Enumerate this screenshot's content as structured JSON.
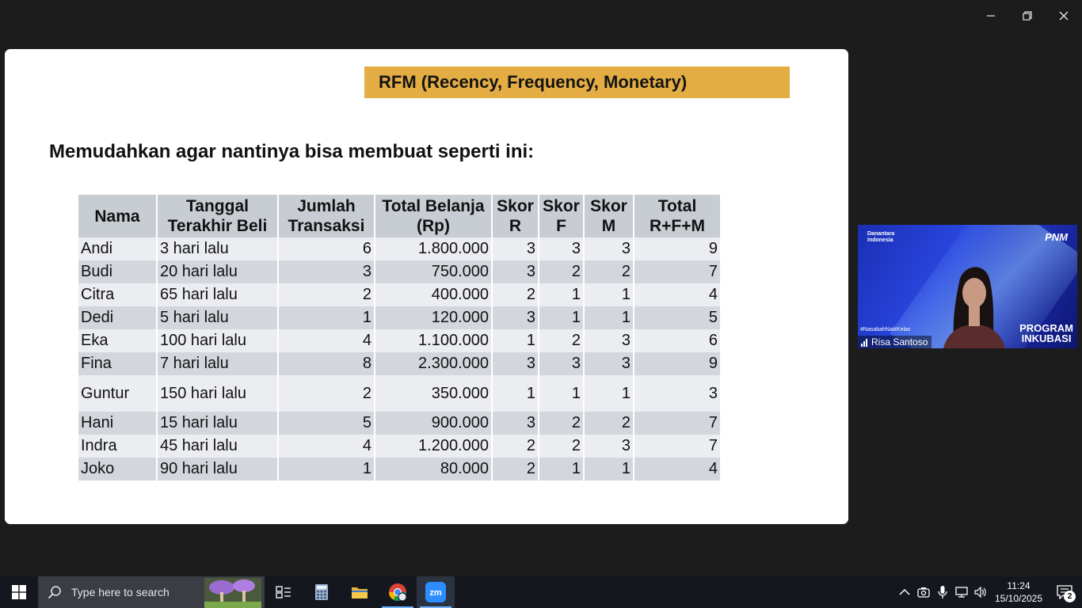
{
  "slide": {
    "title": "RFM (Recency, Frequency, Monetary)",
    "heading": "Memudahkan agar nantinya bisa membuat seperti ini:",
    "table": {
      "headers": [
        [
          "Nama",
          ""
        ],
        [
          "Tanggal",
          "Terakhir Beli"
        ],
        [
          "Jumlah",
          "Transaksi"
        ],
        [
          "Total Belanja",
          "(Rp)"
        ],
        [
          "Skor",
          "R"
        ],
        [
          "Skor",
          "F"
        ],
        [
          "Skor",
          "M"
        ],
        [
          "Total",
          "R+F+M"
        ]
      ],
      "rows": [
        [
          "Andi",
          "3 hari lalu",
          "6",
          "1.800.000",
          "3",
          "3",
          "3",
          "9"
        ],
        [
          "Budi",
          "20 hari lalu",
          "3",
          "750.000",
          "3",
          "2",
          "2",
          "7"
        ],
        [
          "Citra",
          "65 hari lalu",
          "2",
          "400.000",
          "2",
          "1",
          "1",
          "4"
        ],
        [
          "Dedi",
          "5 hari lalu",
          "1",
          "120.000",
          "3",
          "1",
          "1",
          "5"
        ],
        [
          "Eka",
          "100 hari lalu",
          "4",
          "1.100.000",
          "1",
          "2",
          "3",
          "6"
        ],
        [
          "Fina",
          "7 hari lalu",
          "8",
          "2.300.000",
          "3",
          "3",
          "3",
          "9"
        ],
        [
          "Guntur",
          "150 hari lalu",
          "2",
          "350.000",
          "1",
          "1",
          "1",
          "3"
        ],
        [
          "Hani",
          "15 hari lalu",
          "5",
          "900.000",
          "3",
          "2",
          "2",
          "7"
        ],
        [
          "Indra",
          "45 hari lalu",
          "4",
          "1.200.000",
          "2",
          "2",
          "3",
          "7"
        ],
        [
          "Joko",
          "90 hari lalu",
          "1",
          "80.000",
          "2",
          "1",
          "1",
          "4"
        ]
      ]
    }
  },
  "participant": {
    "name": "Risa Santoso",
    "logo_left": [
      "Danantara",
      "Indonesia"
    ],
    "logo_right": "PNM",
    "hashtag": "#NasabahNaikKelas",
    "program": [
      "PROGRAM",
      "INKUBASI"
    ]
  },
  "taskbar": {
    "search_placeholder": "Type here to search",
    "time": "11:24",
    "date": "15/10/2025",
    "notification_count": "2",
    "apps": [
      "task-view",
      "calculator",
      "file-explorer",
      "chrome",
      "zoom"
    ]
  },
  "colors": {
    "title_bg": "#e3ad44",
    "header_bg": "#c8ccd3",
    "row_light": "#ebedf0",
    "row_dark": "#d3d7dd",
    "background": "#1c1c1c",
    "video_bg": "#2947e0"
  }
}
